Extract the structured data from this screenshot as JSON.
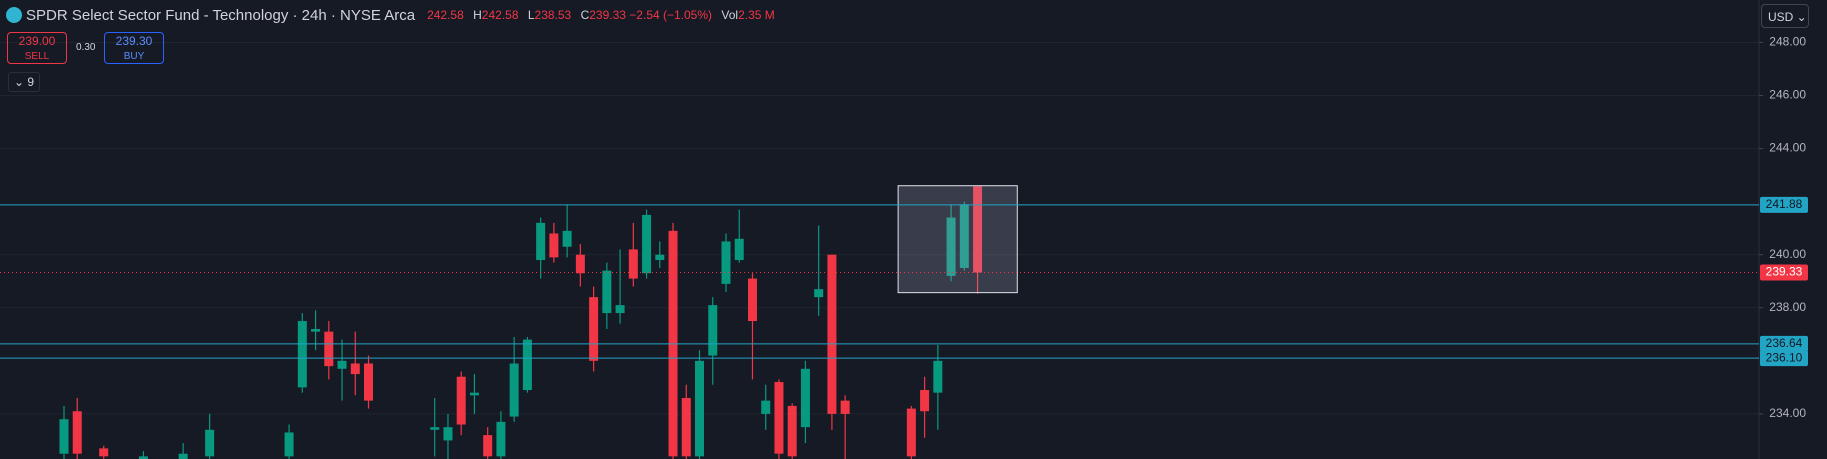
{
  "header": {
    "symbol": "SPDR Select Sector Fund - Technology · 24h · NYSE Arca",
    "h_label": "H",
    "l_label": "L",
    "c_label": "C",
    "change": "−2.54 (−1.05%)",
    "vol_label": "Vol",
    "vol": "2.35 M"
  },
  "trade": {
    "sell_price": "239.00",
    "sell": "SELL",
    "spread": "0.30",
    "buy_price": "239.30",
    "buy": "BUY"
  },
  "indicators_count": "9",
  "currency": "USD",
  "chart_data": {
    "type": "candlestick",
    "categories": [
      null,
      null,
      null,
      null,
      null,
      null,
      null,
      null,
      null,
      null,
      null,
      null,
      null,
      null,
      null,
      null,
      null,
      null,
      null,
      null,
      null,
      null,
      null,
      null,
      null,
      null,
      null,
      null,
      null,
      null,
      null,
      null,
      null,
      null,
      null,
      null,
      null,
      null,
      null,
      null,
      null,
      null,
      null,
      null,
      null,
      null,
      null,
      null,
      null,
      null,
      null,
      null,
      null,
      null,
      null,
      null,
      null,
      null,
      null,
      null,
      null,
      null,
      null,
      null,
      null,
      null,
      null,
      null,
      null,
      null
    ],
    "open": [
      232.5,
      234.1,
      null,
      232.7,
      null,
      null,
      232.3,
      null,
      null,
      232.3,
      null,
      232.4,
      null,
      null,
      null,
      null,
      null,
      232.4,
      235.0,
      237.1,
      237.1,
      235.7,
      235.9,
      235.9,
      null,
      null,
      null,
      null,
      233.4,
      233.0,
      235.4,
      234.7,
      233.2,
      232.4,
      233.9,
      234.9,
      239.8,
      240.8,
      240.3,
      240.0,
      238.4,
      237.8,
      237.8,
      240.2,
      239.3,
      239.8,
      240.9,
      234.6,
      232.4,
      236.2,
      238.9,
      239.8,
      239.1,
      234.0,
      235.2,
      234.3,
      233.5,
      238.4,
      240.0,
      234.5,
      null,
      null,
      null,
      null,
      234.2,
      234.9,
      234.8,
      239.2,
      239.5,
      242.58
    ],
    "high": [
      234.3,
      234.6,
      null,
      232.8,
      null,
      null,
      232.6,
      null,
      null,
      232.9,
      null,
      234.0,
      null,
      null,
      null,
      null,
      null,
      233.6,
      237.8,
      237.9,
      237.5,
      236.8,
      237.1,
      236.2,
      null,
      null,
      null,
      null,
      234.6,
      234.0,
      235.6,
      235.5,
      233.5,
      234.1,
      236.9,
      236.9,
      241.4,
      241.2,
      241.9,
      240.4,
      238.8,
      239.7,
      240.2,
      241.2,
      241.7,
      240.5,
      241.2,
      235.1,
      236.4,
      238.4,
      240.8,
      241.7,
      239.3,
      235.1,
      235.3,
      234.4,
      236.0,
      241.1,
      240.0,
      234.7,
      null,
      null,
      null,
      null,
      234.3,
      235.4,
      236.6,
      241.9,
      242.0,
      242.58
    ],
    "low": [
      232.2,
      232.2,
      null,
      232.1,
      null,
      null,
      232.1,
      null,
      null,
      232.1,
      null,
      232.1,
      null,
      null,
      null,
      null,
      null,
      232.1,
      234.8,
      236.4,
      235.3,
      234.5,
      234.7,
      234.2,
      null,
      null,
      null,
      null,
      232.4,
      232.3,
      233.2,
      234.0,
      232.1,
      232.1,
      233.7,
      234.8,
      239.1,
      239.7,
      239.9,
      238.8,
      235.6,
      237.2,
      237.4,
      238.8,
      239.1,
      239.5,
      232.1,
      232.1,
      232.1,
      235.1,
      238.6,
      239.7,
      235.3,
      233.4,
      232.3,
      232.1,
      232.9,
      237.7,
      233.4,
      232.3,
      null,
      null,
      null,
      null,
      232.1,
      233.1,
      233.4,
      239.0,
      239.4,
      238.53
    ],
    "close": [
      233.8,
      232.5,
      null,
      232.4,
      null,
      null,
      232.4,
      null,
      null,
      232.5,
      null,
      233.4,
      null,
      null,
      null,
      null,
      null,
      233.3,
      237.5,
      237.2,
      235.8,
      236.0,
      235.5,
      234.5,
      null,
      null,
      null,
      null,
      233.5,
      233.5,
      233.6,
      234.8,
      232.4,
      233.7,
      235.9,
      236.8,
      241.2,
      239.9,
      240.9,
      239.3,
      236.0,
      239.4,
      238.1,
      239.1,
      241.5,
      240.0,
      232.4,
      232.4,
      236.0,
      238.1,
      240.5,
      240.6,
      237.5,
      234.5,
      232.5,
      232.4,
      235.7,
      238.7,
      234.0,
      234.0,
      null,
      null,
      null,
      null,
      232.4,
      234.1,
      236.0,
      241.4,
      241.9,
      239.33
    ],
    "up_color": "#089981",
    "down_color": "#f23645",
    "ylim": [
      232.3,
      249.6
    ],
    "yticks": [
      {
        "value": 234,
        "label": "234.00"
      },
      {
        "value": 238,
        "label": "238.00"
      },
      {
        "value": 240,
        "label": "240.00"
      },
      {
        "value": 244,
        "label": "244.00"
      },
      {
        "value": 246,
        "label": "246.00"
      },
      {
        "value": 248,
        "label": "248.00"
      }
    ],
    "grid": true,
    "price_lines": [
      {
        "value": 241.88,
        "label": "241.88"
      },
      {
        "value": 236.64,
        "label": "236.64"
      },
      {
        "value": 236.1,
        "label": "236.10"
      }
    ],
    "price_line_color": "#22a4c4",
    "highlight_box": {
      "x": [
        63,
        72
      ],
      "y": [
        238.57,
        242.6
      ]
    }
  }
}
